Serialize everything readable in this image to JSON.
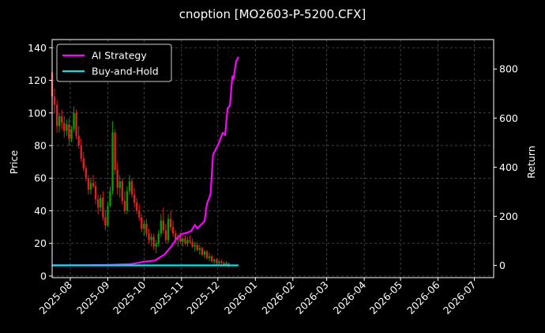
{
  "chart_data": {
    "type": "line",
    "title": "cnoption [MO2603-P-5200.CFX]",
    "ylabel": "Price",
    "y2label": "Return",
    "ylim": [
      -1,
      145
    ],
    "y2lim": [
      -50,
      920
    ],
    "yticks": [
      0,
      20,
      40,
      60,
      80,
      100,
      120,
      140
    ],
    "y2ticks": [
      0,
      200,
      400,
      600,
      800
    ],
    "xlim": [
      "2025-07-17",
      "2026-07-17"
    ],
    "xticks": [
      "2025-08",
      "2025-09",
      "2025-10",
      "2025-11",
      "2025-12",
      "2026-01",
      "2026-02",
      "2026-03",
      "2026-04",
      "2026-05",
      "2026-06",
      "2026-07"
    ],
    "grid": true,
    "legend": "top-left",
    "colors": {
      "up": "#00a000",
      "down": "#e02020",
      "strategy": "#ff00ff",
      "hold": "#00e5e5"
    },
    "series": [
      {
        "name": "AI Strategy",
        "axis": "return",
        "color": "#ff00ff",
        "points": [
          [
            "2025-07-17",
            0
          ],
          [
            "2025-08-15",
            1
          ],
          [
            "2025-09-01",
            2
          ],
          [
            "2025-09-20",
            5
          ],
          [
            "2025-10-01",
            15
          ],
          [
            "2025-10-10",
            20
          ],
          [
            "2025-10-18",
            45
          ],
          [
            "2025-10-24",
            80
          ],
          [
            "2025-10-28",
            110
          ],
          [
            "2025-11-01",
            128
          ],
          [
            "2025-11-05",
            132
          ],
          [
            "2025-11-09",
            140
          ],
          [
            "2025-11-12",
            165
          ],
          [
            "2025-11-14",
            150
          ],
          [
            "2025-11-18",
            170
          ],
          [
            "2025-11-20",
            180
          ],
          [
            "2025-11-22",
            250
          ],
          [
            "2025-11-25",
            290
          ],
          [
            "2025-11-27",
            450
          ],
          [
            "2025-11-30",
            480
          ],
          [
            "2025-12-02",
            500
          ],
          [
            "2025-12-05",
            540
          ],
          [
            "2025-12-07",
            530
          ],
          [
            "2025-12-09",
            640
          ],
          [
            "2025-12-11",
            650
          ],
          [
            "2025-12-13",
            770
          ],
          [
            "2025-12-14",
            760
          ],
          [
            "2025-12-16",
            830
          ],
          [
            "2025-12-18",
            850
          ]
        ]
      },
      {
        "name": "Buy-and-Hold",
        "axis": "return",
        "color": "#00e5e5",
        "points": [
          [
            "2025-07-17",
            0
          ],
          [
            "2025-12-18",
            0
          ]
        ]
      }
    ],
    "candles": [
      [
        "2025-07-17",
        125,
        128,
        105,
        110
      ],
      [
        "2025-07-19",
        110,
        115,
        100,
        105
      ],
      [
        "2025-07-21",
        105,
        108,
        88,
        92
      ],
      [
        "2025-07-23",
        92,
        100,
        88,
        98
      ],
      [
        "2025-07-25",
        98,
        102,
        90,
        94
      ],
      [
        "2025-07-27",
        94,
        98,
        85,
        89
      ],
      [
        "2025-07-29",
        89,
        96,
        86,
        93
      ],
      [
        "2025-07-31",
        93,
        97,
        80,
        84
      ],
      [
        "2025-08-02",
        84,
        92,
        82,
        90
      ],
      [
        "2025-08-04",
        90,
        104,
        88,
        100
      ],
      [
        "2025-08-06",
        100,
        102,
        84,
        86
      ],
      [
        "2025-08-08",
        86,
        92,
        78,
        80
      ],
      [
        "2025-08-10",
        80,
        84,
        70,
        72
      ],
      [
        "2025-08-12",
        72,
        76,
        64,
        66
      ],
      [
        "2025-08-14",
        66,
        68,
        58,
        60
      ],
      [
        "2025-08-16",
        60,
        62,
        50,
        53
      ],
      [
        "2025-08-18",
        53,
        60,
        50,
        57
      ],
      [
        "2025-08-20",
        57,
        62,
        54,
        55
      ],
      [
        "2025-08-22",
        55,
        58,
        44,
        47
      ],
      [
        "2025-08-24",
        47,
        50,
        38,
        42
      ],
      [
        "2025-08-26",
        42,
        50,
        40,
        48
      ],
      [
        "2025-08-28",
        48,
        52,
        34,
        36
      ],
      [
        "2025-08-30",
        36,
        40,
        28,
        31
      ],
      [
        "2025-09-01",
        31,
        45,
        30,
        43
      ],
      [
        "2025-09-03",
        43,
        55,
        42,
        52
      ],
      [
        "2025-09-05",
        52,
        95,
        50,
        88
      ],
      [
        "2025-09-07",
        88,
        90,
        62,
        65
      ],
      [
        "2025-09-09",
        65,
        70,
        50,
        54
      ],
      [
        "2025-09-11",
        54,
        62,
        48,
        58
      ],
      [
        "2025-09-13",
        58,
        60,
        44,
        46
      ],
      [
        "2025-09-15",
        46,
        52,
        38,
        40
      ],
      [
        "2025-09-17",
        40,
        55,
        38,
        52
      ],
      [
        "2025-09-19",
        52,
        62,
        50,
        58
      ],
      [
        "2025-09-21",
        58,
        60,
        48,
        50
      ],
      [
        "2025-09-23",
        50,
        54,
        42,
        45
      ],
      [
        "2025-09-25",
        45,
        48,
        38,
        40
      ],
      [
        "2025-09-27",
        40,
        44,
        34,
        36
      ],
      [
        "2025-09-29",
        36,
        38,
        27,
        29
      ],
      [
        "2025-10-01",
        29,
        34,
        25,
        32
      ],
      [
        "2025-10-03",
        32,
        35,
        24,
        26
      ],
      [
        "2025-10-05",
        26,
        29,
        20,
        22
      ],
      [
        "2025-10-07",
        22,
        26,
        18,
        24
      ],
      [
        "2025-10-09",
        24,
        26,
        16,
        18
      ],
      [
        "2025-10-11",
        18,
        22,
        14,
        20
      ],
      [
        "2025-10-13",
        20,
        28,
        18,
        26
      ],
      [
        "2025-10-15",
        26,
        38,
        24,
        34
      ],
      [
        "2025-10-17",
        34,
        42,
        26,
        28
      ],
      [
        "2025-10-19",
        28,
        32,
        20,
        22
      ],
      [
        "2025-10-21",
        22,
        38,
        20,
        35
      ],
      [
        "2025-10-23",
        35,
        40,
        28,
        30
      ],
      [
        "2025-10-25",
        30,
        34,
        24,
        26
      ],
      [
        "2025-10-27",
        26,
        28,
        20,
        22
      ],
      [
        "2025-10-29",
        22,
        26,
        18,
        24
      ],
      [
        "2025-10-31",
        24,
        27,
        20,
        21
      ],
      [
        "2025-11-02",
        21,
        24,
        18,
        23
      ],
      [
        "2025-11-04",
        23,
        25,
        19,
        20
      ],
      [
        "2025-11-06",
        20,
        24,
        18,
        22
      ],
      [
        "2025-11-08",
        22,
        25,
        20,
        21
      ],
      [
        "2025-11-10",
        21,
        23,
        17,
        18
      ],
      [
        "2025-11-12",
        18,
        21,
        15,
        19
      ],
      [
        "2025-11-14",
        19,
        21,
        15,
        16
      ],
      [
        "2025-11-16",
        16,
        19,
        13,
        17
      ],
      [
        "2025-11-18",
        17,
        18,
        12,
        13
      ],
      [
        "2025-11-20",
        13,
        16,
        11,
        15
      ],
      [
        "2025-11-22",
        15,
        16,
        10,
        11
      ],
      [
        "2025-11-24",
        11,
        14,
        9,
        12
      ],
      [
        "2025-11-26",
        12,
        13,
        8,
        9
      ],
      [
        "2025-11-28",
        9,
        11,
        7,
        10
      ],
      [
        "2025-11-30",
        10,
        11,
        7,
        8
      ],
      [
        "2025-12-02",
        8,
        10,
        6,
        9
      ],
      [
        "2025-12-04",
        9,
        10,
        7,
        8
      ],
      [
        "2025-12-06",
        8,
        9,
        6,
        7
      ],
      [
        "2025-12-08",
        7,
        9,
        6,
        8
      ],
      [
        "2025-12-10",
        8,
        8,
        5,
        6
      ]
    ]
  }
}
